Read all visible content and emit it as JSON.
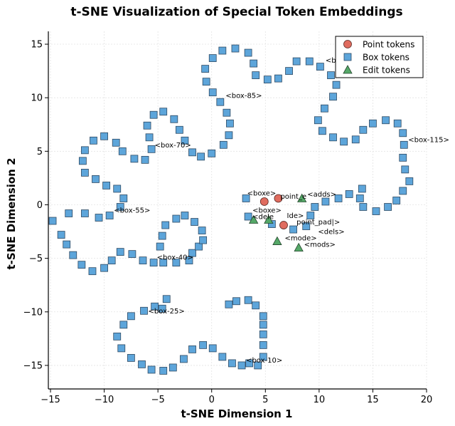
{
  "chart_data": {
    "type": "scatter",
    "title": "t-SNE Visualization of Special Token Embeddings",
    "xlabel": "t-SNE Dimension 1",
    "ylabel": "t-SNE Dimension 2",
    "xlim": [
      -15.2,
      20
    ],
    "ylim": [
      -17.2,
      16.2
    ],
    "xticks": [
      -15,
      -10,
      -5,
      0,
      5,
      10,
      15,
      20
    ],
    "yticks": [
      -15,
      -10,
      -5,
      0,
      5,
      10,
      15
    ],
    "grid": true,
    "legend_position": "top-right",
    "series": [
      {
        "name": "Point tokens",
        "marker": "circle",
        "color": "#e06c5f",
        "points": [
          [
            4.9,
            0.3
          ],
          [
            6.2,
            0.6
          ],
          [
            6.7,
            -1.9
          ]
        ]
      },
      {
        "name": "Box tokens",
        "marker": "square",
        "color": "#5da5da",
        "points": [
          [
            -14.8,
            -1.5
          ],
          [
            -13.3,
            -0.8
          ],
          [
            -11.8,
            -0.8
          ],
          [
            -10.5,
            -1.2
          ],
          [
            -9.5,
            -1.0
          ],
          [
            -8.5,
            -0.2
          ],
          [
            -8.2,
            0.6
          ],
          [
            -8.8,
            1.5
          ],
          [
            -9.8,
            1.8
          ],
          [
            -10.8,
            2.4
          ],
          [
            -11.8,
            3.0
          ],
          [
            -12.0,
            4.1
          ],
          [
            -11.8,
            5.1
          ],
          [
            -11.0,
            6.0
          ],
          [
            -10.0,
            6.4
          ],
          [
            -8.9,
            5.8
          ],
          [
            -8.3,
            5.0
          ],
          [
            -7.2,
            4.3
          ],
          [
            -6.2,
            4.2
          ],
          [
            -5.6,
            5.2
          ],
          [
            -5.8,
            6.3
          ],
          [
            -6.0,
            7.4
          ],
          [
            -5.4,
            8.4
          ],
          [
            -4.5,
            8.7
          ],
          [
            -3.5,
            8.0
          ],
          [
            -3.0,
            7.0
          ],
          [
            -2.5,
            6.0
          ],
          [
            -1.8,
            4.9
          ],
          [
            -1.0,
            4.5
          ],
          [
            0.0,
            4.8
          ],
          [
            1.1,
            5.6
          ],
          [
            1.6,
            6.5
          ],
          [
            1.7,
            7.6
          ],
          [
            1.4,
            8.6
          ],
          [
            0.8,
            9.6
          ],
          [
            0.1,
            10.5
          ],
          [
            -0.5,
            11.5
          ],
          [
            -0.6,
            12.7
          ],
          [
            0.1,
            13.7
          ],
          [
            1.0,
            14.4
          ],
          [
            2.2,
            14.6
          ],
          [
            3.4,
            14.2
          ],
          [
            3.9,
            13.2
          ],
          [
            4.1,
            12.1
          ],
          [
            5.2,
            11.7
          ],
          [
            6.2,
            11.8
          ],
          [
            7.2,
            12.5
          ],
          [
            7.9,
            13.4
          ],
          [
            9.1,
            13.4
          ],
          [
            10.1,
            12.9
          ],
          [
            11.1,
            12.1
          ],
          [
            11.6,
            11.2
          ],
          [
            11.3,
            10.1
          ],
          [
            10.5,
            9.0
          ],
          [
            9.9,
            7.9
          ],
          [
            10.3,
            6.9
          ],
          [
            11.3,
            6.3
          ],
          [
            12.3,
            5.9
          ],
          [
            13.4,
            6.1
          ],
          [
            14.1,
            7.0
          ],
          [
            15.0,
            7.6
          ],
          [
            16.2,
            7.9
          ],
          [
            17.3,
            7.6
          ],
          [
            17.8,
            6.7
          ],
          [
            17.9,
            5.6
          ],
          [
            17.8,
            4.4
          ],
          [
            18.0,
            3.3
          ],
          [
            18.4,
            2.2
          ],
          [
            17.8,
            1.3
          ],
          [
            17.2,
            0.4
          ],
          [
            16.4,
            -0.2
          ],
          [
            15.3,
            -0.6
          ],
          [
            14.1,
            -0.2
          ],
          [
            13.8,
            0.6
          ],
          [
            14.0,
            1.5
          ],
          [
            12.8,
            1.0
          ],
          [
            11.8,
            0.6
          ],
          [
            10.6,
            0.3
          ],
          [
            9.6,
            -0.2
          ],
          [
            9.2,
            -1.0
          ],
          [
            8.8,
            -2.0
          ],
          [
            7.6,
            -2.3
          ],
          [
            5.6,
            -1.8
          ],
          [
            3.2,
            0.6
          ],
          [
            3.4,
            -1.1
          ],
          [
            -14.0,
            -2.8
          ],
          [
            -13.5,
            -3.7
          ],
          [
            -12.9,
            -4.7
          ],
          [
            -12.1,
            -5.6
          ],
          [
            -11.1,
            -6.2
          ],
          [
            -10.0,
            -5.9
          ],
          [
            -9.3,
            -5.2
          ],
          [
            -8.5,
            -4.4
          ],
          [
            -7.4,
            -4.6
          ],
          [
            -6.4,
            -5.2
          ],
          [
            -5.4,
            -5.4
          ],
          [
            -4.5,
            -5.4
          ],
          [
            -3.3,
            -5.4
          ],
          [
            -2.1,
            -5.2
          ],
          [
            -1.8,
            -4.5
          ],
          [
            -1.2,
            -3.9
          ],
          [
            -0.8,
            -3.3
          ],
          [
            -0.9,
            -2.4
          ],
          [
            -1.6,
            -1.6
          ],
          [
            -2.5,
            -1.0
          ],
          [
            -3.3,
            -1.3
          ],
          [
            -4.3,
            -1.9
          ],
          [
            -4.6,
            -2.9
          ],
          [
            -4.8,
            -3.9
          ],
          [
            -4.2,
            -8.8
          ],
          [
            -4.6,
            -9.7
          ],
          [
            -5.3,
            -9.5
          ],
          [
            -6.3,
            -9.9
          ],
          [
            -7.5,
            -10.4
          ],
          [
            -8.2,
            -11.2
          ],
          [
            -8.8,
            -12.3
          ],
          [
            -8.4,
            -13.4
          ],
          [
            -7.5,
            -14.3
          ],
          [
            -6.5,
            -14.9
          ],
          [
            -5.6,
            -15.4
          ],
          [
            -4.5,
            -15.5
          ],
          [
            -3.6,
            -15.2
          ],
          [
            -2.6,
            -14.4
          ],
          [
            -1.8,
            -13.5
          ],
          [
            -0.8,
            -13.1
          ],
          [
            0.1,
            -13.4
          ],
          [
            1.0,
            -14.2
          ],
          [
            1.9,
            -14.8
          ],
          [
            2.8,
            -15.0
          ],
          [
            3.5,
            -14.8
          ],
          [
            4.3,
            -15.0
          ],
          [
            4.8,
            -14.2
          ],
          [
            4.8,
            -13.1
          ],
          [
            4.8,
            -12.1
          ],
          [
            4.8,
            -11.2
          ],
          [
            4.8,
            -10.4
          ],
          [
            4.1,
            -9.4
          ],
          [
            3.4,
            -8.9
          ],
          [
            2.3,
            -9.0
          ],
          [
            1.6,
            -9.3
          ]
        ]
      },
      {
        "name": "Edit tokens",
        "marker": "triangle",
        "color": "#55a868",
        "points": [
          [
            8.4,
            0.6
          ],
          [
            3.9,
            -1.4
          ],
          [
            5.3,
            -1.4
          ],
          [
            6.1,
            -3.4
          ],
          [
            8.1,
            -4.0
          ]
        ]
      }
    ],
    "annotations": [
      {
        "text": "<box-85>",
        "x": 1.3,
        "y": 10.2
      },
      {
        "text": "<box-70>",
        "x": -5.3,
        "y": 5.6
      },
      {
        "text": "<box-55>",
        "x": -9.1,
        "y": -0.5
      },
      {
        "text": "<box-40>",
        "x": -5.1,
        "y": -4.9
      },
      {
        "text": "<box-25>",
        "x": -5.9,
        "y": -9.9
      },
      {
        "text": "<box-10>",
        "x": 3.2,
        "y": -14.5
      },
      {
        "text": "<box-115>",
        "x": 18.3,
        "y": 6.1
      },
      {
        "text": "<bo",
        "x": 10.6,
        "y": 13.5
      },
      {
        "text": "<boxe>",
        "x": 3.3,
        "y": 1.1
      },
      {
        "text": "point_e",
        "x": 6.4,
        "y": 0.8
      },
      {
        "text": "<adds>",
        "x": 8.9,
        "y": 1.0
      },
      {
        "text": "<boxe>",
        "x": 3.8,
        "y": -0.5
      },
      {
        "text": "<dele",
        "x": 3.8,
        "y": -1.1
      },
      {
        "text": "Ide>",
        "x": 7.0,
        "y": -1.0
      },
      {
        "text": "point_pad|>",
        "x": 7.9,
        "y": -1.6
      },
      {
        "text": "<dels>",
        "x": 9.9,
        "y": -2.5
      },
      {
        "text": "<mode>",
        "x": 6.8,
        "y": -3.1
      },
      {
        "text": "<mods>",
        "x": 8.6,
        "y": -3.7
      }
    ]
  }
}
